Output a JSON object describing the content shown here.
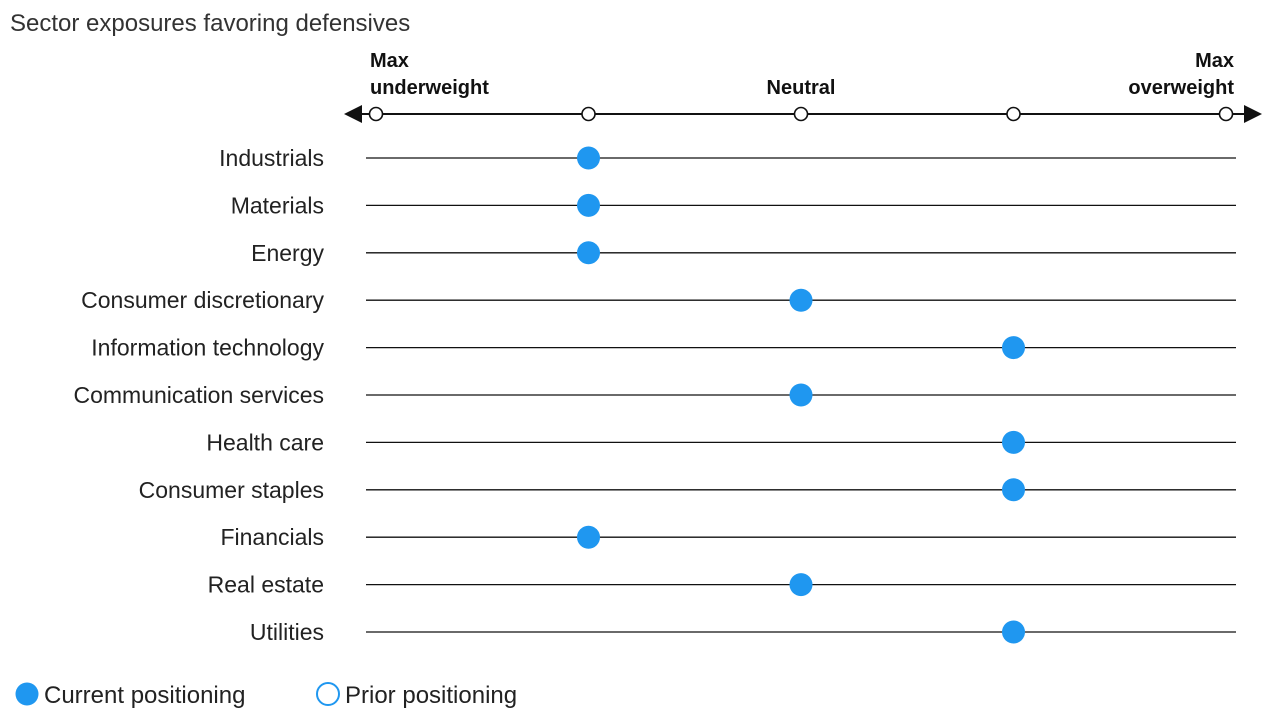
{
  "chart_data": {
    "type": "scatter",
    "title": "Sector exposures favoring defensives",
    "scale": {
      "levels": [
        0,
        1,
        2,
        3,
        4
      ],
      "labels": [
        {
          "level": 0,
          "lines": [
            "Max",
            "underweight"
          ]
        },
        {
          "level": 2,
          "lines": [
            "Neutral"
          ]
        },
        {
          "level": 4,
          "lines": [
            "Max",
            "overweight"
          ]
        }
      ]
    },
    "categories": [
      "Industrials",
      "Materials",
      "Energy",
      "Consumer discretionary",
      "Information technology",
      "Communication services",
      "Health care",
      "Consumer staples",
      "Financials",
      "Real estate",
      "Utilities"
    ],
    "series": [
      {
        "name": "Current positioning",
        "color": "#1f97f0",
        "values": [
          1,
          1,
          1,
          2,
          3,
          2,
          3,
          3,
          1,
          2,
          3
        ]
      }
    ],
    "legend": {
      "position": "bottom-left",
      "items": [
        {
          "label": "Current positioning",
          "style": "filled",
          "color": "#1f97f0"
        },
        {
          "label": "Prior positioning",
          "style": "hollow",
          "color": "#1f97f0"
        }
      ]
    }
  }
}
